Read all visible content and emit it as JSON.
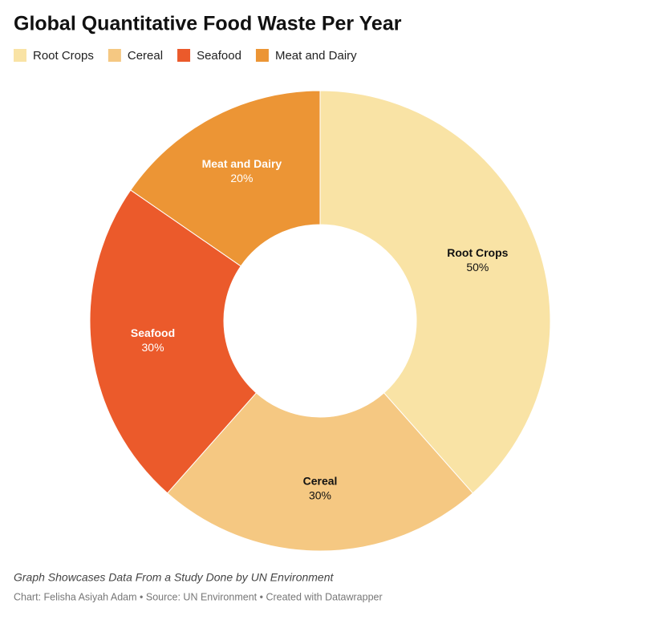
{
  "chart_data": {
    "type": "donut",
    "title": "Global Quantitative Food Waste Per Year",
    "categories": [
      "Root Crops",
      "Cereal",
      "Seafood",
      "Meat and Dairy"
    ],
    "values": [
      50,
      30,
      30,
      20
    ],
    "value_labels": [
      "50%",
      "30%",
      "30%",
      "20%"
    ],
    "colors": [
      "#f9e3a5",
      "#f5c882",
      "#eb5a2b",
      "#ec9535"
    ],
    "legend": "top-left",
    "notes": "Graph Showcases Data From a Study Done by UN Environment",
    "footer": "Chart: Felisha Asiyah Adam • Source: UN Environment • Created with Datawrapper"
  }
}
